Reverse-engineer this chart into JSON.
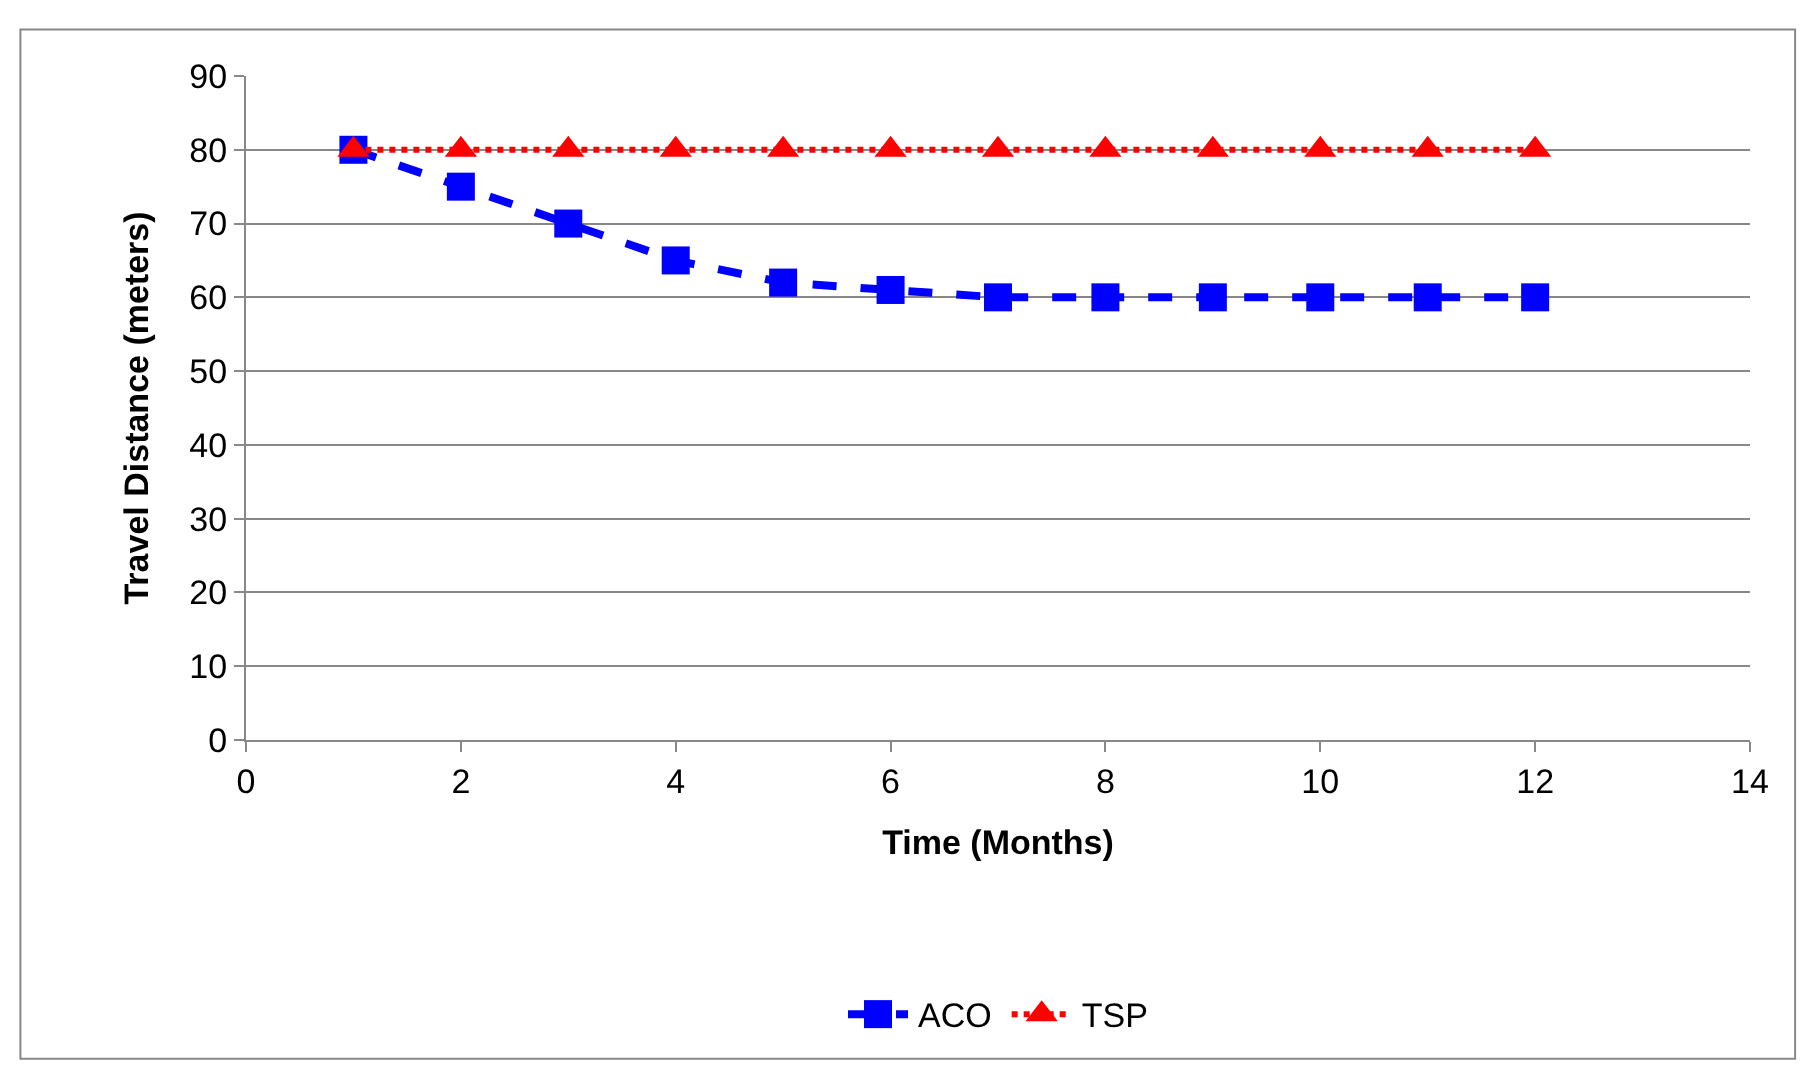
{
  "chart_data": {
    "type": "line",
    "xlabel": "Time (Months)",
    "ylabel": "Travel Distance (meters)",
    "x": [
      1,
      2,
      3,
      4,
      5,
      6,
      7,
      8,
      9,
      10,
      11,
      12
    ],
    "series": [
      {
        "name": "ACO",
        "color": "#0000ff",
        "marker": "square",
        "line_style": "dashed",
        "values": [
          80,
          75,
          70,
          65,
          62,
          61,
          60,
          60,
          60,
          60,
          60,
          60
        ]
      },
      {
        "name": "TSP",
        "color": "#ff0000",
        "marker": "triangle",
        "line_style": "dotted",
        "values": [
          80,
          80,
          80,
          80,
          80,
          80,
          80,
          80,
          80,
          80,
          80,
          80
        ]
      }
    ],
    "xlim": [
      0,
      14
    ],
    "xticks": [
      0,
      2,
      4,
      6,
      8,
      10,
      12,
      14
    ],
    "ylim": [
      0,
      90
    ],
    "yticks": [
      0,
      10,
      20,
      30,
      40,
      50,
      60,
      70,
      80,
      90
    ],
    "grid": "y",
    "legend": "bottom"
  }
}
